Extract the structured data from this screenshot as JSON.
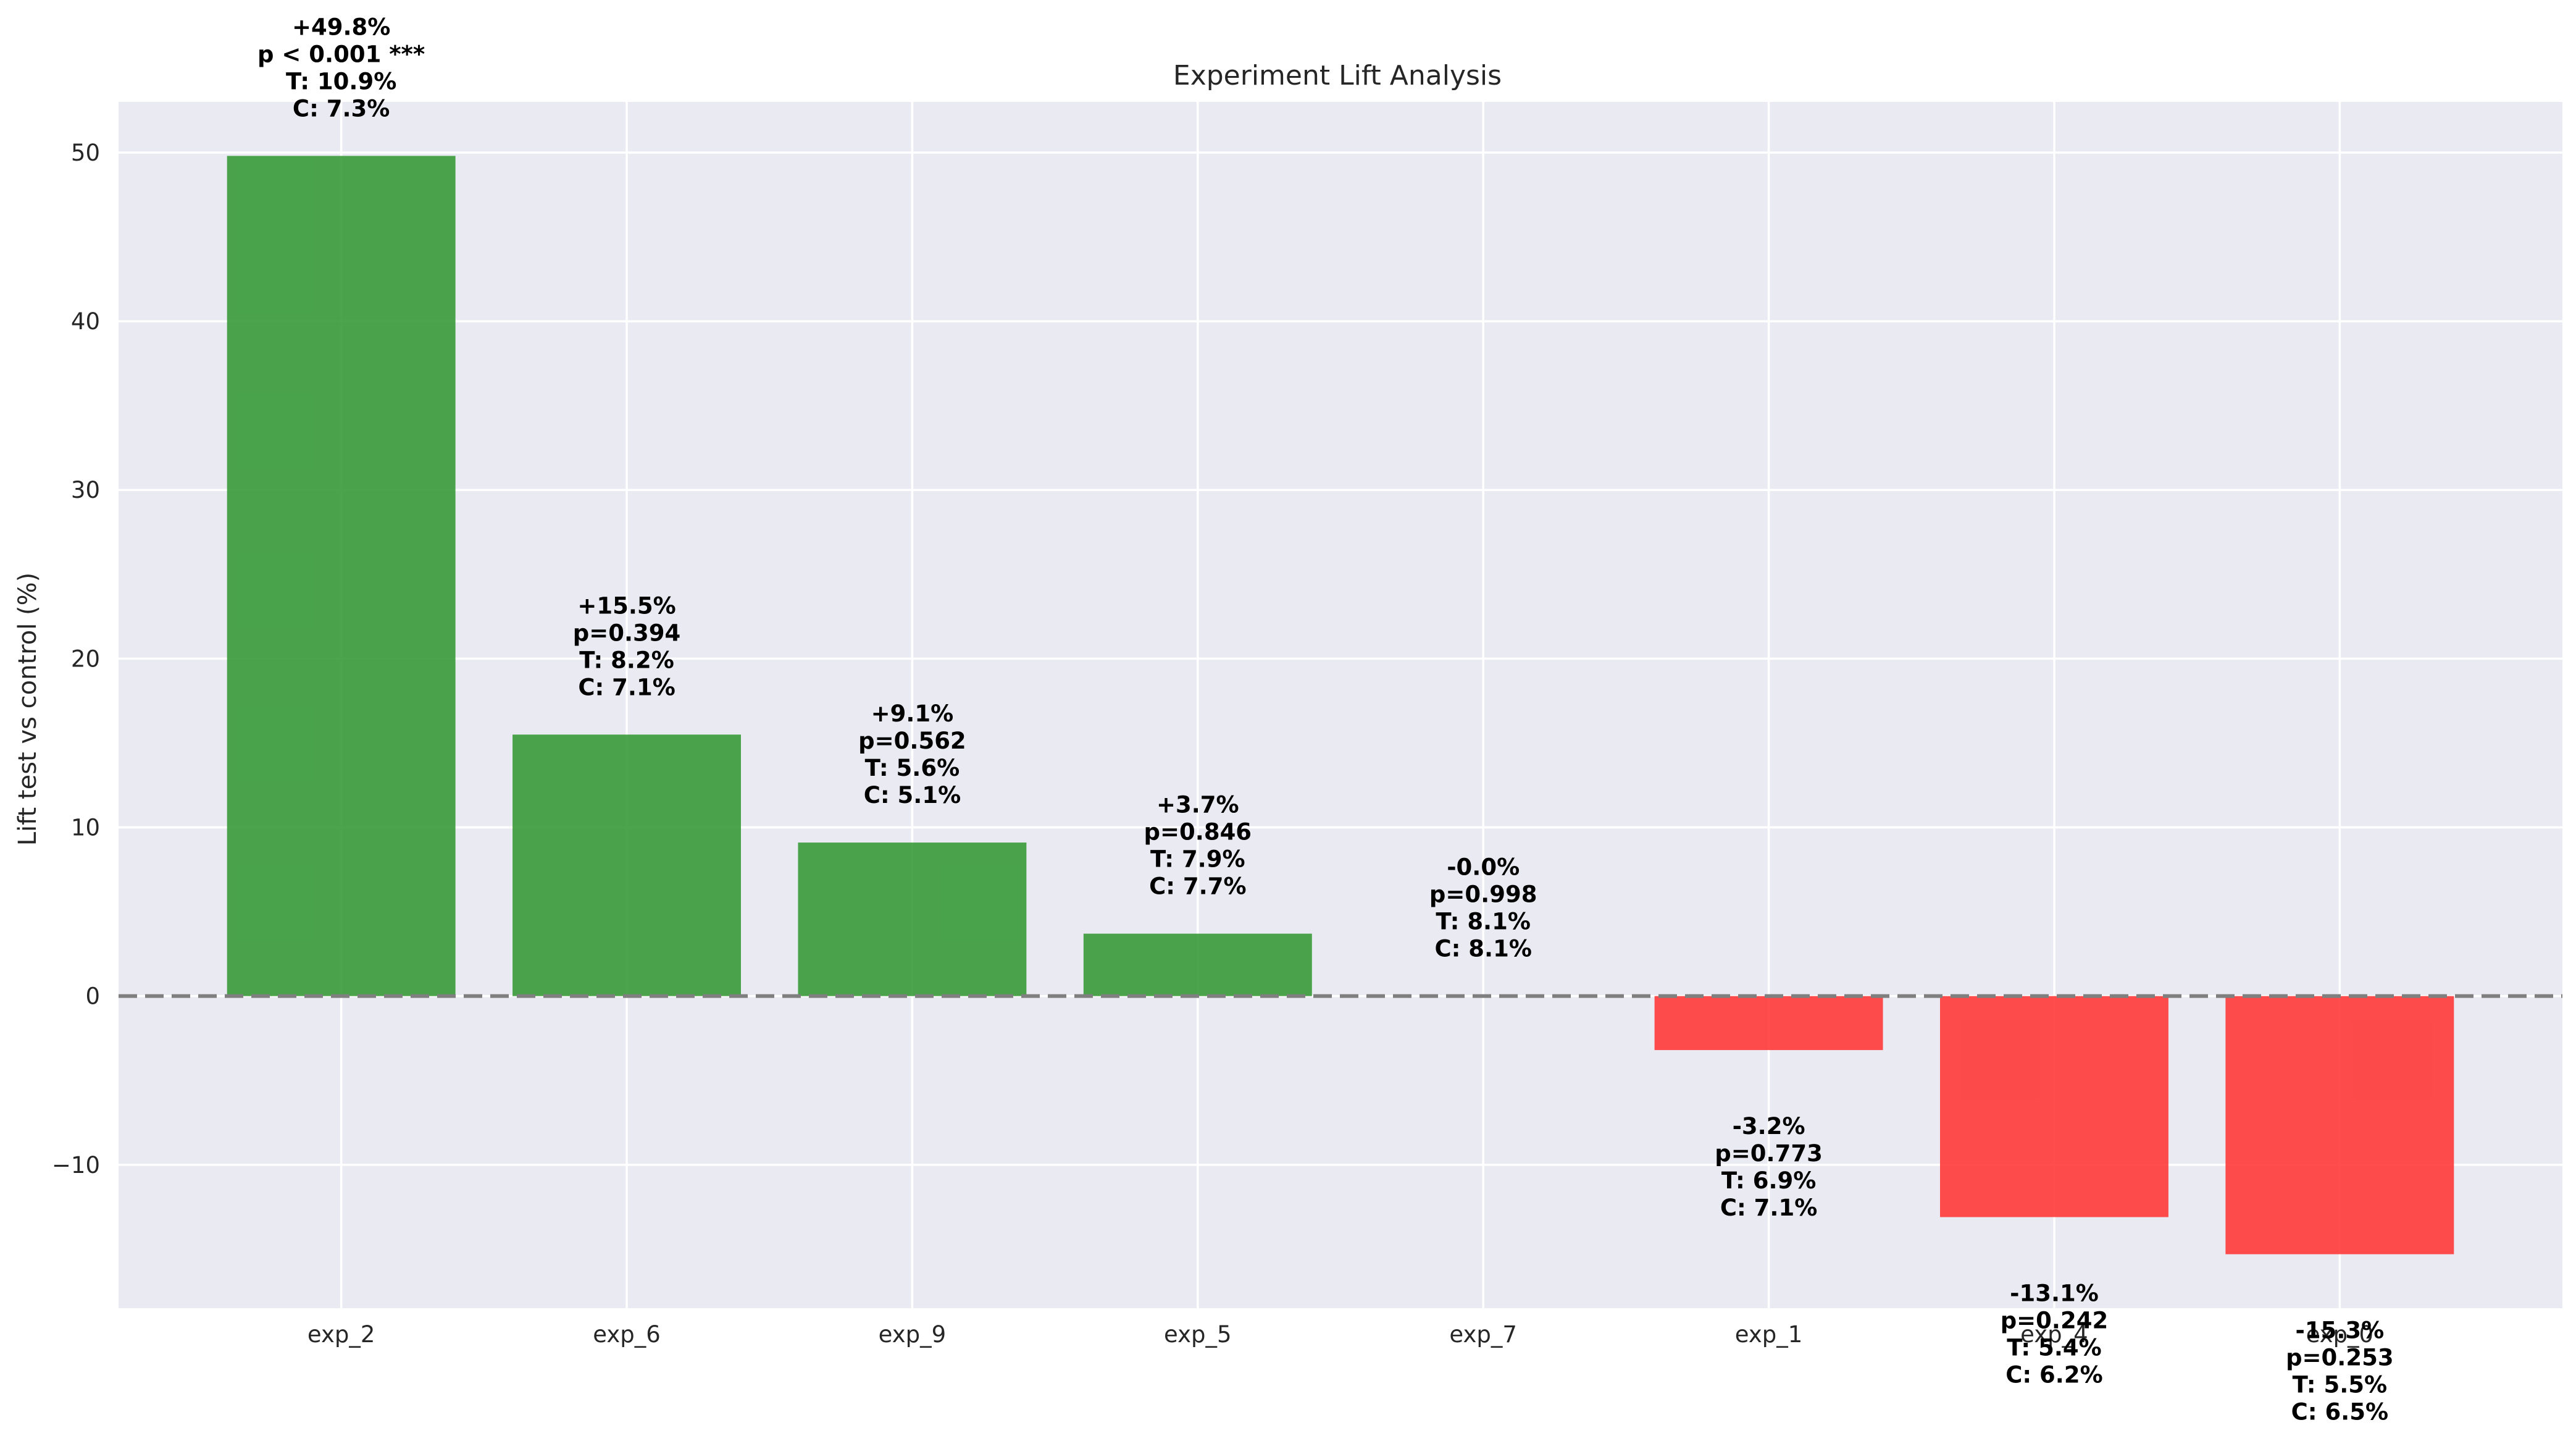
{
  "chart_data": {
    "type": "bar",
    "title": "Experiment Lift Analysis",
    "xlabel": "",
    "ylabel": "Lift test vs control (%)",
    "ylim": [
      -18.5,
      53
    ],
    "yticks": [
      -10,
      0,
      10,
      20,
      30,
      40,
      50
    ],
    "ytick_labels": [
      "−10",
      "0",
      "10",
      "20",
      "30",
      "40",
      "50"
    ],
    "grid": true,
    "categories": [
      "exp_2",
      "exp_6",
      "exp_9",
      "exp_5",
      "exp_7",
      "exp_1",
      "exp_4",
      "exp_0"
    ],
    "values": [
      49.8,
      15.5,
      9.1,
      3.7,
      -0.0,
      -3.2,
      -13.1,
      -15.3
    ],
    "annotations": [
      [
        "+49.8%",
        "p < 0.001 ***",
        "T: 10.9%",
        "C: 7.3%"
      ],
      [
        "+15.5%",
        "p=0.394",
        "T: 8.2%",
        "C: 7.1%"
      ],
      [
        "+9.1%",
        "p=0.562",
        "T: 5.6%",
        "C: 5.1%"
      ],
      [
        "+3.7%",
        "p=0.846",
        "T: 7.9%",
        "C: 7.7%"
      ],
      [
        "-0.0%",
        "p=0.998",
        "T: 8.1%",
        "C: 8.1%"
      ],
      [
        "-3.2%",
        "p=0.773",
        "T: 6.9%",
        "C: 7.1%"
      ],
      [
        "-13.1%",
        "p=0.242",
        "T: 5.4%",
        "C: 6.2%"
      ],
      [
        "-15.3%",
        "p=0.253",
        "T: 5.5%",
        "C: 6.5%"
      ]
    ],
    "reference_line": 0,
    "colors": {
      "positive": "#339933",
      "negative": "#ff3333",
      "background": "#eaeaf2",
      "grid": "#ffffff",
      "reference": "#7f7f7f"
    }
  }
}
